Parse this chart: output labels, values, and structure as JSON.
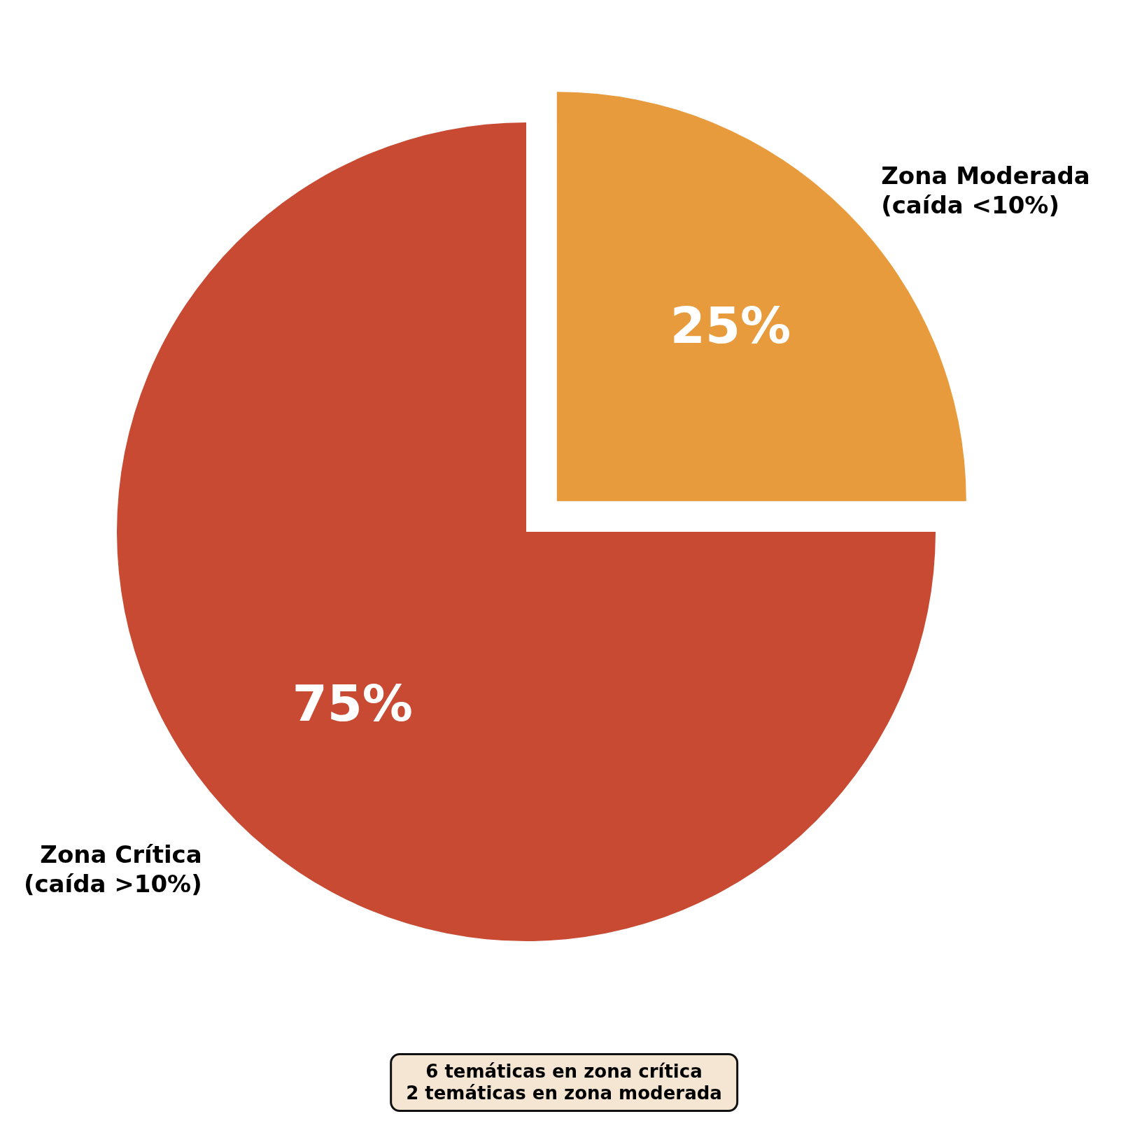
{
  "chart_data": {
    "type": "pie",
    "categories": [
      "Zona Moderada\n(caída <10%)",
      "Zona Crítica\n(caída >10%)"
    ],
    "values": [
      25,
      75
    ],
    "colors": [
      "#e89b3c",
      "#c84a32"
    ],
    "value_labels": [
      "25%",
      "75%"
    ],
    "annotations": [
      "6 temáticas en zona crítica\n2 temáticas en zona moderada"
    ]
  }
}
